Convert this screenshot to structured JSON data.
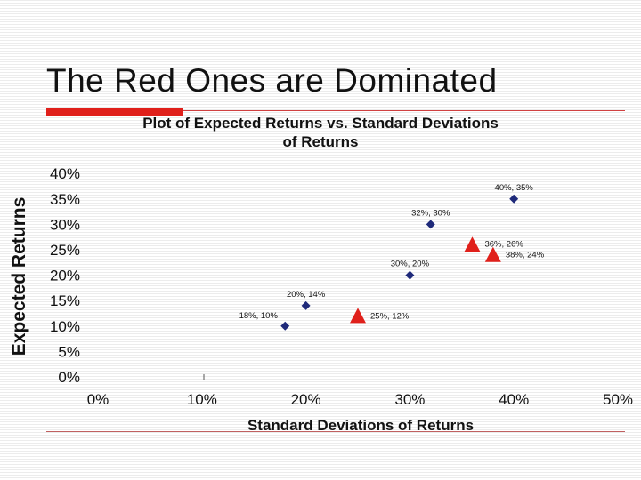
{
  "slide": {
    "title": "The Red Ones are Dominated"
  },
  "colors": {
    "accent_bar": "#e0201b",
    "efficient_points": "#1f2a7a",
    "dominated_points": "#e0201b",
    "text": "#111111"
  },
  "chart_data": {
    "type": "scatter",
    "title": "Plot of Expected Returns vs. Standard Deviations of Returns",
    "title_lines": [
      "Plot of Expected Returns  vs. Standard Deviations",
      "of Returns"
    ],
    "xlabel": "Standard Deviations of Returns",
    "ylabel": "Expected Returns",
    "xlim": [
      0,
      50
    ],
    "ylim": [
      0,
      40
    ],
    "x_ticks": [
      0,
      10,
      20,
      30,
      40,
      50
    ],
    "y_ticks": [
      0,
      5,
      10,
      15,
      20,
      25,
      30,
      35,
      40
    ],
    "x_tick_labels": [
      "0%",
      "10%",
      "20%",
      "30%",
      "40%",
      "50%"
    ],
    "y_tick_labels": [
      "0%",
      "5%",
      "10%",
      "15%",
      "20%",
      "25%",
      "30%",
      "35%",
      "40%"
    ],
    "grid": false,
    "series": [
      {
        "marker": "diamond",
        "color": "#1f2a7a",
        "points": [
          {
            "x": 18,
            "y": 10,
            "label": "18%, 10%"
          },
          {
            "x": 20,
            "y": 14,
            "label": "20%, 14%"
          },
          {
            "x": 30,
            "y": 20,
            "label": "30%, 20%"
          },
          {
            "x": 32,
            "y": 30,
            "label": "32%, 30%"
          },
          {
            "x": 40,
            "y": 35,
            "label": "40%, 35%"
          }
        ]
      },
      {
        "marker": "triangle",
        "color": "#e0201b",
        "points": [
          {
            "x": 25,
            "y": 12,
            "label": "25%, 12%"
          },
          {
            "x": 36,
            "y": 26,
            "label": "36%, 26%"
          },
          {
            "x": 38,
            "y": 24,
            "label": "38%, 24%"
          }
        ]
      }
    ]
  }
}
